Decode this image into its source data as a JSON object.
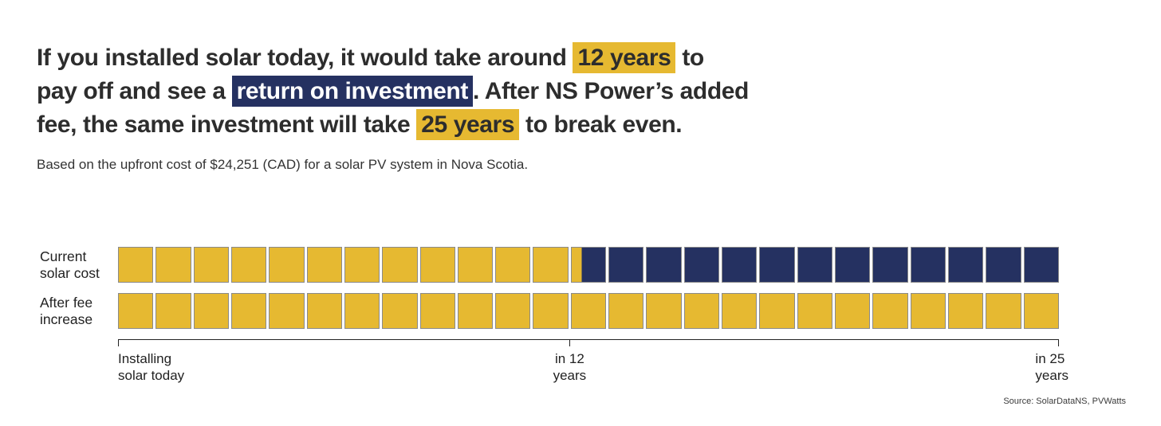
{
  "palette": {
    "gold": "#E6B931",
    "navy": "#253161",
    "title_text": "#2d2d2d",
    "highlight_text_on_navy": "#ffffff"
  },
  "title": {
    "segments": [
      {
        "text": "If you installed solar today, it would take around ",
        "style": "plain"
      },
      {
        "text": "12 years",
        "style": "gold"
      },
      {
        "text": " to",
        "style": "plain"
      },
      {
        "text": "",
        "style": "br"
      },
      {
        "text": "pay off and see a ",
        "style": "plain"
      },
      {
        "text": "return on investment",
        "style": "navy"
      },
      {
        "text": ". After NS Power’s added",
        "style": "plain"
      },
      {
        "text": "",
        "style": "br"
      },
      {
        "text": "fee, the same investment will take ",
        "style": "plain"
      },
      {
        "text": "25 years",
        "style": "gold"
      },
      {
        "text": " to break even.",
        "style": "plain"
      }
    ]
  },
  "subtitle": "Based on the upfront cost of $24,251 (CAD) for a solar PV system in Nova Scotia.",
  "source": "Source: SolarDataNS, PVWatts",
  "chart_data": {
    "type": "waffle",
    "unit": "years",
    "total_years": 25,
    "cell_meaning": "1 cell = 1 year; gold fraction = years still paying off, navy = years of return",
    "rows": [
      {
        "label": "Current\nsolar cost",
        "payback_years": 12.3,
        "cells": [
          1,
          1,
          1,
          1,
          1,
          1,
          1,
          1,
          1,
          1,
          1,
          1,
          0.3,
          0,
          0,
          0,
          0,
          0,
          0,
          0,
          0,
          0,
          0,
          0,
          0
        ]
      },
      {
        "label": "After fee\nincrease",
        "payback_years": 25,
        "cells": [
          1,
          1,
          1,
          1,
          1,
          1,
          1,
          1,
          1,
          1,
          1,
          1,
          1,
          1,
          1,
          1,
          1,
          1,
          1,
          1,
          1,
          1,
          1,
          1,
          1
        ]
      }
    ],
    "axis": {
      "ticks": [
        {
          "label": "Installing\nsolar today",
          "pos": 0,
          "align": "left"
        },
        {
          "label": "in 12\nyears",
          "pos": 0.48,
          "align": "center"
        },
        {
          "label": "in 25\nyears",
          "pos": 1,
          "align": "right"
        }
      ]
    }
  }
}
